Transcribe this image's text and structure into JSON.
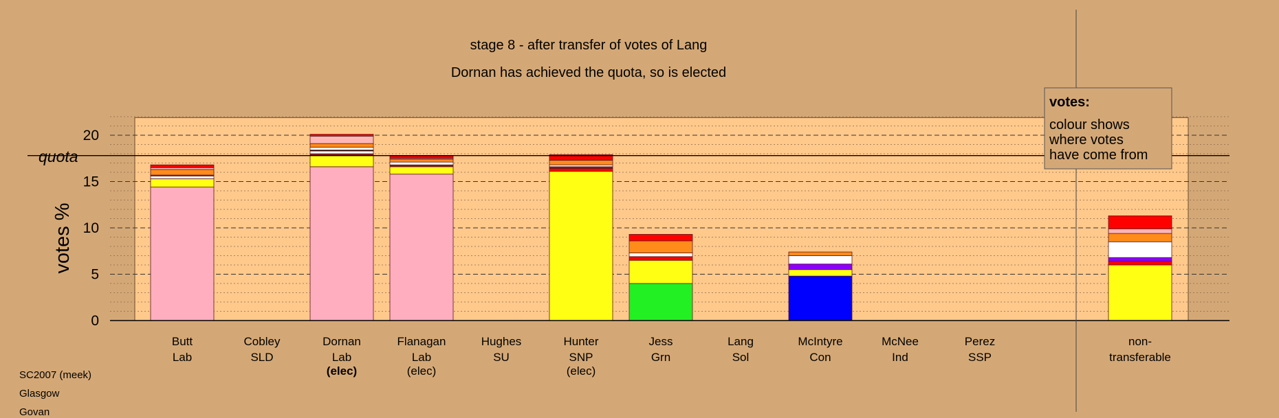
{
  "chart_data": {
    "type": "bar",
    "stacked": true,
    "title": "stage 8 - after transfer of votes of Lang",
    "subtitle": "Dornan has achieved the quota, so is elected",
    "ylabel": "votes %",
    "ylim": [
      0,
      22.5
    ],
    "yticks": [
      "0",
      "5",
      "10",
      "15",
      "20"
    ],
    "quota": 17.8,
    "quota_label": "quota",
    "grid": "dashed horizontal, minor dotted",
    "legend_position": "top-right",
    "legend": {
      "heading": "votes:",
      "lines": [
        "colour shows",
        "where votes",
        "have come from"
      ]
    },
    "colors": {
      "Lab": "#ffaec0",
      "SNP": "#ffff14",
      "Grn": "#22f022",
      "Con": "#0000ff",
      "SSP": "#ff0000",
      "Ind": "#ff8c1a",
      "SU": "#ffb6b6",
      "SLD": "#ffa500",
      "Sol": "#8c1a1a",
      "other": "#ffffff",
      "Purple": "#8b00ff"
    },
    "categories": [
      {
        "name": "Butt",
        "party": "Lab",
        "status": "",
        "segments": [
          {
            "color": "#ffaec0",
            "value": 14.4
          },
          {
            "color": "#ffff14",
            "value": 0.9
          },
          {
            "color": "#ffffff",
            "value": 0.3
          },
          {
            "color": "#8b00ff",
            "value": 0.1
          },
          {
            "color": "#ff8c1a",
            "value": 0.6
          },
          {
            "color": "#ffb6b6",
            "value": 0.2
          },
          {
            "color": "#ff0000",
            "value": 0.3
          }
        ]
      },
      {
        "name": "Cobley",
        "party": "SLD",
        "status": "",
        "segments": []
      },
      {
        "name": "Dornan",
        "party": "Lab",
        "status": "(elec)",
        "status_bold": true,
        "segments": [
          {
            "color": "#ffaec0",
            "value": 16.6
          },
          {
            "color": "#ffff14",
            "value": 1.2
          },
          {
            "color": "#8c1a1a",
            "value": 0.2
          },
          {
            "color": "#ffffff",
            "value": 0.3
          },
          {
            "color": "#000000",
            "value": 0.1
          },
          {
            "color": "#ffffff",
            "value": 0.3
          },
          {
            "color": "#ff8c1a",
            "value": 0.4
          },
          {
            "color": "#ffb6b6",
            "value": 0.8
          },
          {
            "color": "#ff0000",
            "value": 0.2
          }
        ]
      },
      {
        "name": "Flanagan",
        "party": "Lab",
        "status": "(elec)",
        "status_bold": false,
        "segments": [
          {
            "color": "#ffaec0",
            "value": 15.8
          },
          {
            "color": "#ffff14",
            "value": 0.8
          },
          {
            "color": "#8c1a1a",
            "value": 0.2
          },
          {
            "color": "#ffffff",
            "value": 0.3
          },
          {
            "color": "#ff8c1a",
            "value": 0.3
          },
          {
            "color": "#ffb6b6",
            "value": 0.1
          },
          {
            "color": "#ff0000",
            "value": 0.3
          }
        ]
      },
      {
        "name": "Hughes",
        "party": "SU",
        "status": "",
        "segments": []
      },
      {
        "name": "Hunter",
        "party": "SNP",
        "status": "(elec)",
        "status_bold": false,
        "segments": [
          {
            "color": "#ffff14",
            "value": 16.1
          },
          {
            "color": "#ff0000",
            "value": 0.3
          },
          {
            "color": "#8c1a1a",
            "value": 0.2
          },
          {
            "color": "#ffffff",
            "value": 0.2
          },
          {
            "color": "#ff8c1a",
            "value": 0.5
          },
          {
            "color": "#ff0000",
            "value": 0.6
          }
        ]
      },
      {
        "name": "Jess",
        "party": "Grn",
        "status": "",
        "segments": [
          {
            "color": "#22f022",
            "value": 4.0
          },
          {
            "color": "#ffff14",
            "value": 2.5
          },
          {
            "color": "#ff0000",
            "value": 0.4
          },
          {
            "color": "#ffffff",
            "value": 0.4
          },
          {
            "color": "#ff8c1a",
            "value": 1.3
          },
          {
            "color": "#ff0000",
            "value": 0.7
          }
        ]
      },
      {
        "name": "Lang",
        "party": "Sol",
        "status": "",
        "segments": []
      },
      {
        "name": "McIntyre",
        "party": "Con",
        "status": "",
        "segments": [
          {
            "color": "#0000ff",
            "value": 4.8
          },
          {
            "color": "#ffff14",
            "value": 0.7
          },
          {
            "color": "#8b00ff",
            "value": 0.6
          },
          {
            "color": "#ffffff",
            "value": 0.9
          },
          {
            "color": "#ff8c1a",
            "value": 0.4
          }
        ]
      },
      {
        "name": "McNee",
        "party": "Ind",
        "status": "",
        "segments": []
      },
      {
        "name": "Perez",
        "party": "SSP",
        "status": "",
        "segments": []
      },
      {
        "name": "non-",
        "party": "transferable",
        "status": "",
        "segments": [
          {
            "color": "#ffff14",
            "value": 6.0
          },
          {
            "color": "#ff0000",
            "value": 0.4
          },
          {
            "color": "#8b00ff",
            "value": 0.4
          },
          {
            "color": "#ffffff",
            "value": 1.7
          },
          {
            "color": "#ff8c1a",
            "value": 0.9
          },
          {
            "color": "#ffb6b6",
            "value": 0.5
          },
          {
            "color": "#ff0000",
            "value": 1.4
          }
        ]
      }
    ]
  },
  "footer": {
    "line1": "SC2007 (meek)",
    "line2": "Glasgow",
    "line3": "Govan"
  }
}
